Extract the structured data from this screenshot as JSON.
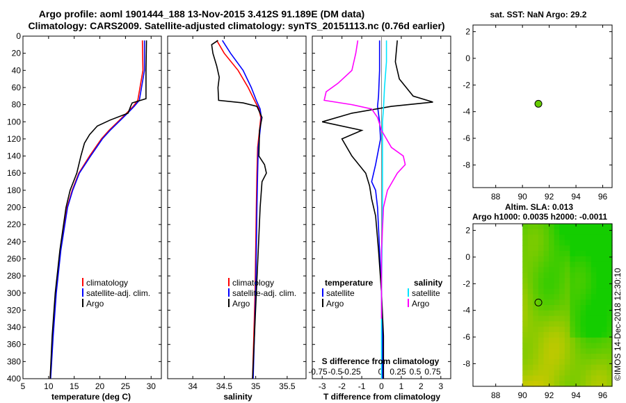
{
  "header": {
    "title_line1": "Argo profile: aoml 1901444_188 13-Nov-2015 3.412S 91.189E (DM data)",
    "title_line2": "Climatology: CARS2009. Satellite-adjusted climatology: synTS_20151113.nc (0.76d earlier)"
  },
  "colors": {
    "climatology": "#ff0000",
    "satellite": "#0000ff",
    "argo": "#000000",
    "salinity_satellite": "#00e5ff",
    "salinity_argo": "#ff00ff",
    "sst_marker": "#66cc00"
  },
  "chart_data": [
    {
      "type": "line",
      "panel": "temperature",
      "xlabel": "temperature (deg C)",
      "ylabel": "",
      "xlim": [
        5,
        32
      ],
      "ylim": [
        400,
        0
      ],
      "xticks": [
        5,
        10,
        15,
        20,
        25,
        30
      ],
      "yticks": [
        0,
        20,
        40,
        60,
        80,
        100,
        120,
        140,
        160,
        180,
        200,
        220,
        240,
        260,
        280,
        300,
        320,
        340,
        360,
        380,
        400
      ],
      "legend": [
        "climatology",
        "satellite-adj. clim.",
        "Argo"
      ],
      "series": [
        {
          "name": "climatology",
          "color": "#ff0000",
          "depth": [
            5,
            40,
            75,
            82,
            90,
            100,
            110,
            120,
            140,
            160,
            180,
            200,
            250,
            300,
            350,
            400
          ],
          "values": [
            28.3,
            28.4,
            27.4,
            26.5,
            25.2,
            23.5,
            21.8,
            20.3,
            18.0,
            15.9,
            14.6,
            13.6,
            12.3,
            11.4,
            10.8,
            10.3
          ]
        },
        {
          "name": "satellite-adj. clim.",
          "color": "#0000ff",
          "depth": [
            5,
            40,
            75,
            82,
            90,
            100,
            110,
            120,
            140,
            160,
            180,
            200,
            250,
            300,
            350,
            400
          ],
          "values": [
            28.7,
            28.7,
            27.7,
            26.7,
            25.4,
            23.7,
            22.0,
            20.5,
            18.2,
            16.0,
            14.7,
            13.7,
            12.4,
            11.5,
            10.9,
            10.4
          ]
        },
        {
          "name": "Argo",
          "color": "#000000",
          "depth": [
            5,
            40,
            73,
            78,
            82,
            90,
            98,
            105,
            115,
            125,
            140,
            160,
            180,
            200,
            250,
            300,
            350,
            400
          ],
          "values": [
            29.1,
            29.0,
            29.0,
            26.3,
            26.0,
            25.5,
            22.0,
            19.5,
            18.0,
            17.0,
            16.3,
            15.5,
            14.2,
            13.4,
            12.2,
            11.3,
            10.7,
            10.3
          ]
        }
      ]
    },
    {
      "type": "line",
      "panel": "salinity",
      "xlabel": "salinity",
      "ylabel": "",
      "xlim": [
        33.6,
        35.8
      ],
      "ylim": [
        400,
        0
      ],
      "xticks": [
        34,
        34.5,
        35,
        35.5
      ],
      "legend": [
        "climatology",
        "satellite-adj. clim.",
        "Argo"
      ],
      "series": [
        {
          "name": "climatology",
          "color": "#ff0000",
          "depth": [
            5,
            20,
            40,
            60,
            75,
            85,
            95,
            110,
            130,
            160,
            200,
            250,
            300,
            350,
            400
          ],
          "values": [
            34.38,
            34.5,
            34.72,
            34.88,
            34.98,
            35.05,
            35.08,
            35.06,
            35.03,
            35.02,
            35.01,
            35.0,
            34.99,
            34.97,
            34.95
          ]
        },
        {
          "name": "satellite-adj. clim.",
          "color": "#0000ff",
          "depth": [
            5,
            20,
            40,
            60,
            75,
            85,
            95,
            110,
            130,
            160,
            200,
            250,
            300,
            350,
            400
          ],
          "values": [
            34.47,
            34.6,
            34.8,
            34.93,
            35.01,
            35.07,
            35.09,
            35.07,
            35.04,
            35.03,
            35.02,
            35.01,
            35.0,
            34.98,
            34.96
          ]
        },
        {
          "name": "Argo",
          "color": "#000000",
          "depth": [
            5,
            10,
            20,
            35,
            48,
            60,
            75,
            78,
            82,
            95,
            110,
            140,
            150,
            160,
            170,
            200,
            250,
            300,
            350,
            400
          ],
          "values": [
            34.4,
            34.3,
            34.32,
            34.38,
            34.42,
            34.4,
            34.41,
            34.8,
            35.02,
            35.1,
            35.06,
            35.05,
            35.14,
            35.17,
            35.1,
            35.07,
            35.04,
            35.01,
            34.98,
            34.95
          ]
        }
      ]
    },
    {
      "type": "line",
      "panel": "difference",
      "xlabel": "T difference from climatology",
      "top_xlabel": "S difference from climatology",
      "xlim": [
        -3.5,
        3.5
      ],
      "ylim": [
        400,
        0
      ],
      "xticks": [
        -3,
        -2,
        -1,
        0,
        1,
        2,
        3
      ],
      "top_xtick_labels": [
        "-0.75",
        "-0.5",
        "-0.25",
        "0",
        "0.25",
        "0.5",
        "0.75"
      ],
      "legend_left": {
        "title": "temperature",
        "entries": [
          "satellite",
          "Argo"
        ]
      },
      "legend_right": {
        "title": "salinity",
        "entries": [
          "satellite",
          "Argo"
        ]
      },
      "series": [
        {
          "name": "T satellite",
          "color": "#0000ff",
          "depth": [
            5,
            40,
            70,
            82,
            100,
            120,
            150,
            170,
            180,
            200,
            250,
            300,
            350,
            400
          ],
          "values": [
            -0.1,
            -0.1,
            -0.15,
            -0.2,
            -0.1,
            -0.05,
            -0.3,
            -0.5,
            -0.3,
            -0.2,
            -0.1,
            0.0,
            0.05,
            0.05
          ]
        },
        {
          "name": "T Argo",
          "color": "#000000",
          "depth": [
            5,
            30,
            50,
            70,
            77,
            82,
            90,
            100,
            110,
            120,
            140,
            160,
            175,
            190,
            210,
            250,
            300,
            350,
            400
          ],
          "values": [
            0.8,
            0.7,
            0.9,
            1.6,
            2.6,
            0.5,
            -1.5,
            -3.0,
            -1.0,
            -2.0,
            -1.5,
            -0.8,
            -0.6,
            -0.5,
            -0.3,
            -0.15,
            0.0,
            0.1,
            0.1
          ]
        },
        {
          "name": "S satellite",
          "color": "#00e5ff",
          "depth": [
            5,
            30,
            60,
            85,
            100,
            140,
            200,
            300,
            400
          ],
          "values": [
            0.25,
            0.25,
            0.15,
            0.1,
            0.05,
            0.05,
            0.05,
            0.0,
            0.0
          ]
        },
        {
          "name": "S Argo",
          "color": "#ff00ff",
          "depth": [
            5,
            20,
            40,
            55,
            65,
            75,
            80,
            85,
            95,
            110,
            130,
            140,
            150,
            160,
            180,
            200,
            250,
            300,
            330
          ],
          "values": [
            -1.2,
            -1.3,
            -1.5,
            -2.2,
            -2.8,
            -2.9,
            -1.5,
            -0.5,
            -0.2,
            0.0,
            0.5,
            1.1,
            1.2,
            0.8,
            0.3,
            0.1,
            0.0,
            0.0,
            0.0
          ]
        }
      ]
    },
    {
      "type": "scatter",
      "panel": "sst_map",
      "title": "sat. SST: NaN Argo: 29.2",
      "xlim": [
        86.3,
        96.7
      ],
      "ylim": [
        -9.7,
        2.5
      ],
      "xticks": [
        88,
        90,
        92,
        94,
        96
      ],
      "yticks": [
        2,
        0,
        -2,
        -4,
        -6,
        -8
      ],
      "x": [
        91.19
      ],
      "y": [
        -3.41
      ]
    },
    {
      "type": "heatmap",
      "panel": "sla_map",
      "title_line1": "Altim. SLA: 0.013",
      "title_line2": "Argo h1000: 0.0035 h2000: -0.0011",
      "xlim": [
        86.3,
        96.7
      ],
      "ylim": [
        -9.7,
        2.5
      ],
      "xticks": [
        88,
        90,
        92,
        94,
        96
      ],
      "yticks": [
        2,
        0,
        -2,
        -4,
        -6,
        -8
      ],
      "data_xrange": [
        90,
        96.7
      ],
      "x": [
        91.19
      ],
      "y": [
        -3.41
      ]
    }
  ],
  "watermark": "©IMOS 14-Dec-2018 12:30:10"
}
